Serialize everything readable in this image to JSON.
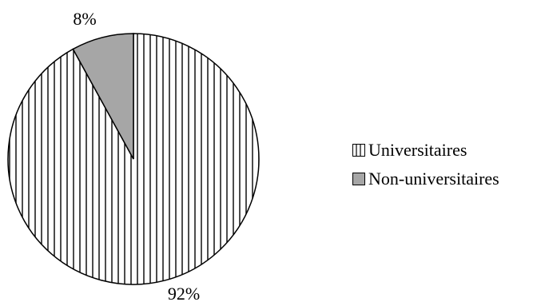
{
  "chart_data": {
    "type": "pie",
    "title": "",
    "slices": [
      {
        "label": "Universitaires",
        "value": 92,
        "display": "92%",
        "fill": "pattern-vertical-stripes",
        "color": "#ffffff"
      },
      {
        "label": "Non-universitaires",
        "value": 8,
        "display": "8%",
        "fill": "solid",
        "color": "#a6a6a6"
      }
    ],
    "legend_position": "right",
    "start_angle": "12 o'clock",
    "direction": "clockwise"
  }
}
